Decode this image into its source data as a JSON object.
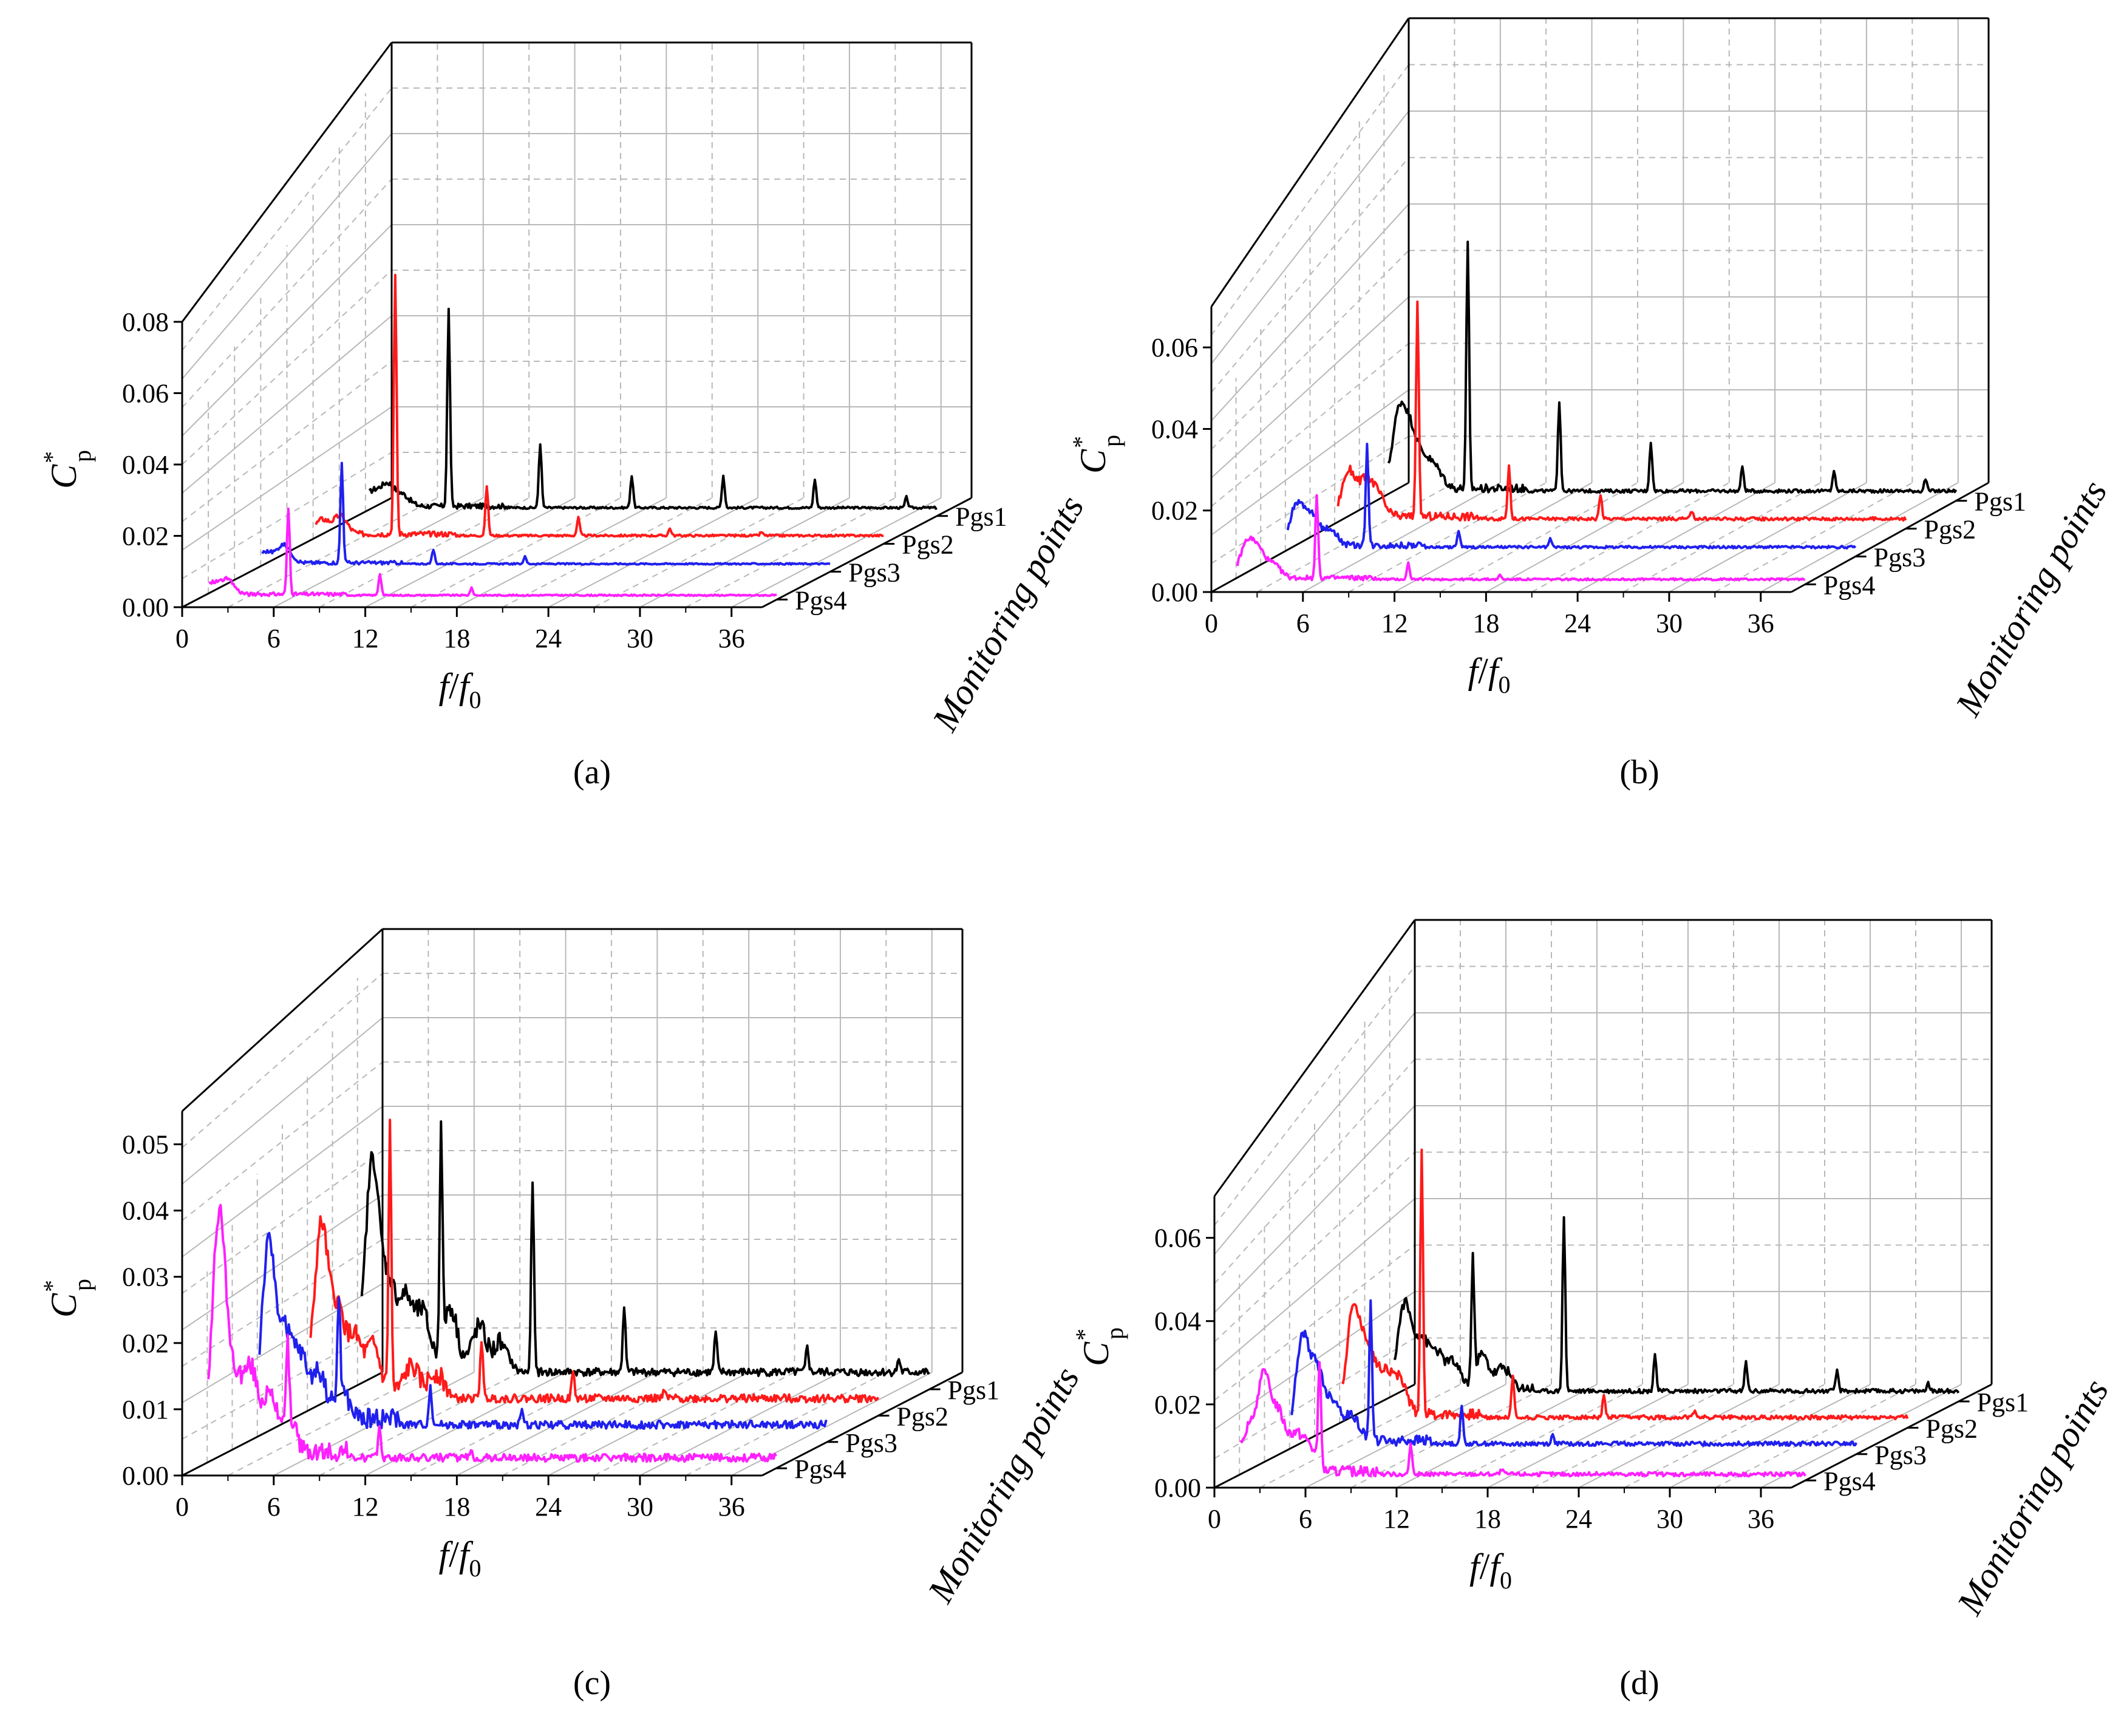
{
  "figure": {
    "series_colors": {
      "Pgs1": "#000000",
      "Pgs2": "#ff1a1a",
      "Pgs3": "#2020ee",
      "Pgs4": "#ff20ff"
    },
    "grid_color": "#b8b8b8"
  },
  "chart_data": [
    {
      "type": "line",
      "panel": "a",
      "caption": "(a)",
      "title": "",
      "xlabel": "f/f0",
      "xlabel_main": "f",
      "xlabel_den": "f",
      "xlabel_sub": "0",
      "ylabel_main": "C",
      "ylabel_sup": "*",
      "ylabel_sub": "p",
      "zlabel": "Monitoring points",
      "xlim": [
        0,
        38
      ],
      "ylim": [
        0,
        0.08
      ],
      "xticks": [
        "0",
        "6",
        "12",
        "18",
        "24",
        "30",
        "36"
      ],
      "yticks": [
        "0.00",
        "0.02",
        "0.04",
        "0.06",
        "0.08"
      ],
      "series": [
        {
          "name": "Pgs1",
          "baseline": 0.002,
          "noise_amp": 0.0015,
          "noise": [
            [
              1.0,
              0.004
            ],
            [
              2.0,
              0.006
            ],
            [
              3.0,
              0.003
            ]
          ],
          "peaks": [
            [
              6,
              0.055
            ],
            [
              12,
              0.018
            ],
            [
              18,
              0.009
            ],
            [
              24,
              0.009
            ],
            [
              30,
              0.008
            ],
            [
              36,
              0.003
            ]
          ]
        },
        {
          "name": "Pgs2",
          "baseline": 0.002,
          "noise_amp": 0.0015,
          "noise": [
            [
              1.2,
              0.004
            ],
            [
              2.4,
              0.005
            ]
          ],
          "peaks": [
            [
              6,
              0.072
            ],
            [
              12,
              0.014
            ],
            [
              18,
              0.005
            ],
            [
              24,
              0.002
            ],
            [
              30,
              0.001
            ]
          ]
        },
        {
          "name": "Pgs3",
          "baseline": 0.002,
          "noise_amp": 0.001,
          "noise": [
            [
              1.0,
              0.003
            ],
            [
              2.2,
              0.005
            ]
          ],
          "peaks": [
            [
              6,
              0.028
            ],
            [
              12,
              0.004
            ],
            [
              18,
              0.002
            ]
          ]
        },
        {
          "name": "Pgs4",
          "baseline": 0.001,
          "noise_amp": 0.001,
          "noise": [
            [
              1.0,
              0.003
            ],
            [
              2.0,
              0.004
            ]
          ],
          "peaks": [
            [
              6,
              0.024
            ],
            [
              12,
              0.006
            ],
            [
              18,
              0.002
            ]
          ]
        }
      ]
    },
    {
      "type": "line",
      "panel": "b",
      "caption": "(b)",
      "title": "",
      "xlabel": "f/f0",
      "xlabel_main": "f",
      "xlabel_den": "f",
      "xlabel_sub": "0",
      "ylabel_main": "C",
      "ylabel_sup": "*",
      "ylabel_sub": "p",
      "zlabel": "Monitoring points",
      "xlim": [
        0,
        38
      ],
      "ylim": [
        0,
        0.07
      ],
      "xticks": [
        "0",
        "6",
        "12",
        "18",
        "24",
        "30",
        "36"
      ],
      "yticks": [
        "0.00",
        "0.02",
        "0.04",
        "0.06"
      ],
      "series": [
        {
          "name": "Pgs1",
          "baseline": 0.002,
          "noise_amp": 0.002,
          "noise": [
            [
              1.5,
              0.018
            ],
            [
              2.3,
              0.012
            ],
            [
              3.2,
              0.006
            ],
            [
              4.0,
              0.004
            ]
          ],
          "peaks": [
            [
              6,
              0.06
            ],
            [
              12,
              0.022
            ],
            [
              18,
              0.012
            ],
            [
              24,
              0.006
            ],
            [
              30,
              0.005
            ],
            [
              36,
              0.003
            ]
          ]
        },
        {
          "name": "Pgs2",
          "baseline": 0.002,
          "noise_amp": 0.002,
          "noise": [
            [
              1.5,
              0.011
            ],
            [
              2.6,
              0.008
            ],
            [
              3.4,
              0.005
            ]
          ],
          "peaks": [
            [
              6,
              0.052
            ],
            [
              12,
              0.013
            ],
            [
              18,
              0.006
            ],
            [
              24,
              0.002
            ]
          ]
        },
        {
          "name": "Pgs3",
          "baseline": 0.002,
          "noise_amp": 0.0015,
          "noise": [
            [
              1.4,
              0.01
            ],
            [
              2.4,
              0.007
            ],
            [
              3.6,
              0.004
            ]
          ],
          "peaks": [
            [
              6,
              0.025
            ],
            [
              12,
              0.004
            ],
            [
              18,
              0.002
            ]
          ]
        },
        {
          "name": "Pgs4",
          "baseline": 0.001,
          "noise_amp": 0.0012,
          "noise": [
            [
              1.4,
              0.008
            ],
            [
              2.2,
              0.006
            ],
            [
              3.2,
              0.003
            ]
          ],
          "peaks": [
            [
              6,
              0.02
            ],
            [
              12,
              0.004
            ],
            [
              18,
              0.001
            ]
          ]
        }
      ]
    },
    {
      "type": "line",
      "panel": "c",
      "caption": "(c)",
      "title": "",
      "xlabel": "f/f0",
      "xlabel_main": "f",
      "xlabel_den": "f",
      "xlabel_sub": "0",
      "ylabel_main": "C",
      "ylabel_sup": "*",
      "ylabel_sub": "p",
      "zlabel": "Monitoring points",
      "xlim": [
        0,
        38
      ],
      "ylim": [
        0,
        0.055
      ],
      "xticks": [
        "0",
        "6",
        "12",
        "18",
        "24",
        "30",
        "36"
      ],
      "yticks": [
        "0.00",
        "0.01",
        "0.02",
        "0.03",
        "0.04",
        "0.05"
      ],
      "series": [
        {
          "name": "Pgs1",
          "baseline": 0.002,
          "noise_amp": 0.003,
          "noise": [
            [
              1.5,
              0.031
            ],
            [
              2.6,
              0.012
            ],
            [
              3.7,
              0.01
            ],
            [
              4.8,
              0.008
            ],
            [
              6.6,
              0.009
            ],
            [
              8.5,
              0.006
            ],
            [
              10,
              0.004
            ]
          ],
          "peaks": [
            [
              6,
              0.032
            ],
            [
              12,
              0.029
            ],
            [
              18,
              0.01
            ],
            [
              24,
              0.006
            ],
            [
              30,
              0.004
            ],
            [
              36,
              0.002
            ]
          ]
        },
        {
          "name": "Pgs2",
          "baseline": 0.002,
          "noise_amp": 0.003,
          "noise": [
            [
              1.5,
              0.025
            ],
            [
              2.6,
              0.012
            ],
            [
              3.7,
              0.008
            ],
            [
              4.9,
              0.007
            ],
            [
              7.4,
              0.004
            ],
            [
              9,
              0.003
            ]
          ],
          "peaks": [
            [
              6,
              0.04
            ],
            [
              12,
              0.009
            ],
            [
              18,
              0.004
            ],
            [
              24,
              0.001
            ]
          ]
        },
        {
          "name": "Pgs3",
          "baseline": 0.002,
          "noise_amp": 0.003,
          "noise": [
            [
              1.4,
              0.026
            ],
            [
              2.5,
              0.012
            ],
            [
              3.5,
              0.009
            ],
            [
              4.7,
              0.007
            ],
            [
              6.2,
              0.004
            ]
          ],
          "peaks": [
            [
              6,
              0.015
            ],
            [
              12,
              0.006
            ],
            [
              18,
              0.002
            ]
          ]
        },
        {
          "name": "Pgs4",
          "baseline": 0.001,
          "noise_amp": 0.003,
          "noise": [
            [
              1.5,
              0.036
            ],
            [
              2.6,
              0.01
            ],
            [
              3.6,
              0.012
            ],
            [
              4.8,
              0.008
            ],
            [
              6.0,
              0.006
            ]
          ],
          "peaks": [
            [
              6,
              0.01
            ],
            [
              12,
              0.005
            ],
            [
              18,
              0.001
            ]
          ]
        }
      ]
    },
    {
      "type": "line",
      "panel": "d",
      "caption": "(d)",
      "title": "",
      "xlabel": "f/f0",
      "xlabel_main": "f",
      "xlabel_den": "f",
      "xlabel_sub": "0",
      "ylabel_main": "C",
      "ylabel_sup": "*",
      "ylabel_sub": "p",
      "zlabel": "Monitoring points",
      "xlim": [
        0,
        38
      ],
      "ylim": [
        0,
        0.07
      ],
      "xticks": [
        "0",
        "6",
        "12",
        "18",
        "24",
        "30",
        "36"
      ],
      "yticks": [
        "0.00",
        "0.02",
        "0.04",
        "0.06"
      ],
      "series": [
        {
          "name": "Pgs1",
          "baseline": 0.002,
          "noise_amp": 0.0025,
          "noise": [
            [
              1.5,
              0.02
            ],
            [
              2.6,
              0.011
            ],
            [
              3.6,
              0.008
            ],
            [
              4.7,
              0.006
            ],
            [
              6.6,
              0.008
            ],
            [
              8,
              0.005
            ]
          ],
          "peaks": [
            [
              6,
              0.028
            ],
            [
              12,
              0.042
            ],
            [
              18,
              0.009
            ],
            [
              24,
              0.007
            ],
            [
              30,
              0.005
            ],
            [
              36,
              0.002
            ]
          ]
        },
        {
          "name": "Pgs2",
          "baseline": 0.002,
          "noise_amp": 0.0025,
          "noise": [
            [
              1.5,
              0.025
            ],
            [
              2.5,
              0.015
            ],
            [
              3.6,
              0.01
            ],
            [
              4.6,
              0.008
            ]
          ],
          "peaks": [
            [
              6,
              0.063
            ],
            [
              12,
              0.01
            ],
            [
              18,
              0.005
            ],
            [
              24,
              0.002
            ]
          ]
        },
        {
          "name": "Pgs3",
          "baseline": 0.002,
          "noise_amp": 0.0025,
          "noise": [
            [
              1.5,
              0.024
            ],
            [
              2.5,
              0.016
            ],
            [
              3.6,
              0.009
            ],
            [
              4.8,
              0.006
            ]
          ],
          "peaks": [
            [
              6,
              0.034
            ],
            [
              12,
              0.009
            ],
            [
              18,
              0.002
            ]
          ]
        },
        {
          "name": "Pgs4",
          "baseline": 0.001,
          "noise_amp": 0.0025,
          "noise": [
            [
              1.2,
              0.009
            ],
            [
              2.3,
              0.022
            ],
            [
              3.3,
              0.013
            ],
            [
              4.4,
              0.008
            ],
            [
              5.3,
              0.006
            ]
          ],
          "peaks": [
            [
              6,
              0.025
            ],
            [
              12,
              0.007
            ],
            [
              18,
              0.001
            ]
          ]
        }
      ]
    }
  ]
}
